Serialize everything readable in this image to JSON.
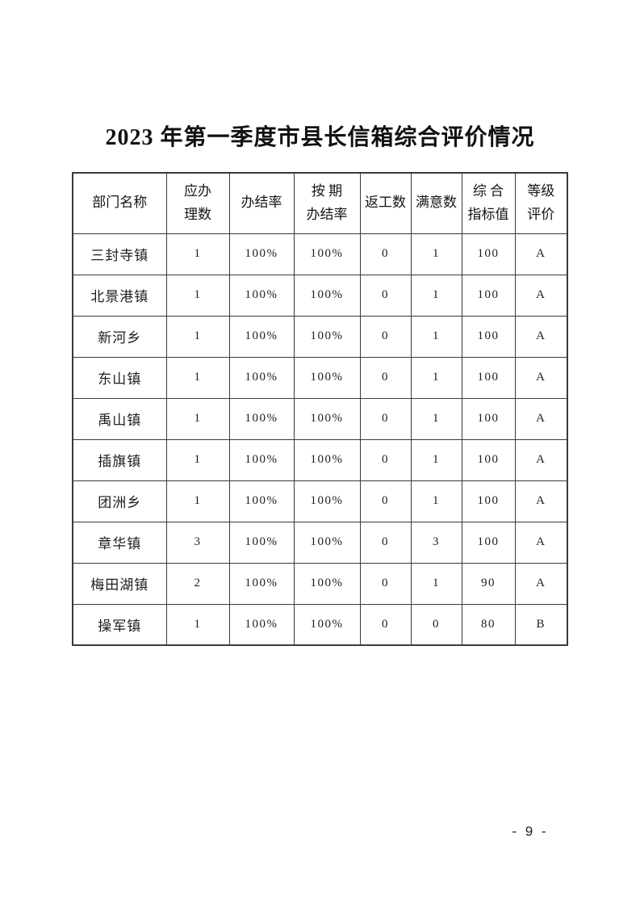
{
  "page": {
    "title": "2023 年第一季度市县长信箱综合评价情况",
    "page_number": "- 9 -"
  },
  "table": {
    "headers": [
      "部门名称",
      "应办\n理数",
      "办结率",
      "按 期\n办结率",
      "返工数",
      "满意数",
      "综 合\n指标值",
      "等级\n评价"
    ],
    "rows": [
      {
        "name": "三封寺镇",
        "values": [
          "1",
          "100%",
          "100%",
          "0",
          "1",
          "100",
          "A"
        ]
      },
      {
        "name": "北景港镇",
        "values": [
          "1",
          "100%",
          "100%",
          "0",
          "1",
          "100",
          "A"
        ]
      },
      {
        "name": "新河乡",
        "values": [
          "1",
          "100%",
          "100%",
          "0",
          "1",
          "100",
          "A"
        ]
      },
      {
        "name": "东山镇",
        "values": [
          "1",
          "100%",
          "100%",
          "0",
          "1",
          "100",
          "A"
        ]
      },
      {
        "name": "禹山镇",
        "values": [
          "1",
          "100%",
          "100%",
          "0",
          "1",
          "100",
          "A"
        ]
      },
      {
        "name": "插旗镇",
        "values": [
          "1",
          "100%",
          "100%",
          "0",
          "1",
          "100",
          "A"
        ]
      },
      {
        "name": "团洲乡",
        "values": [
          "1",
          "100%",
          "100%",
          "0",
          "1",
          "100",
          "A"
        ]
      },
      {
        "name": "章华镇",
        "values": [
          "3",
          "100%",
          "100%",
          "0",
          "3",
          "100",
          "A"
        ]
      },
      {
        "name": "梅田湖镇",
        "values": [
          "2",
          "100%",
          "100%",
          "0",
          "1",
          "90",
          "A"
        ]
      },
      {
        "name": "操军镇",
        "values": [
          "1",
          "100%",
          "100%",
          "0",
          "0",
          "80",
          "B"
        ]
      }
    ]
  }
}
